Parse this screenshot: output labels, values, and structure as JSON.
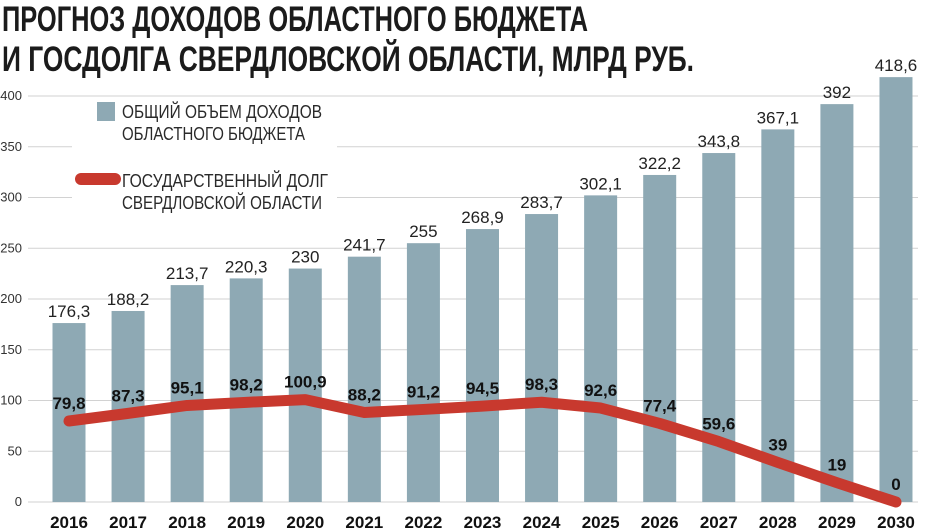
{
  "title": {
    "line1": "ПРОГНОЗ ДОХОДОВ ОБЛАСТНОГО БЮДЖЕТА",
    "line2": "И ГОСДОЛГА СВЕРДЛОВСКОЙ ОБЛАСТИ, МЛРД РУБ."
  },
  "colors": {
    "bars": "#8ea9b4",
    "line": "#c8392e",
    "grid": "#d2d2d2",
    "text": "#1b1b1b"
  },
  "chart_data": {
    "type": "bar",
    "categories": [
      "2016",
      "2017",
      "2018",
      "2019",
      "2020",
      "2021",
      "2022",
      "2023",
      "2024",
      "2025",
      "2026",
      "2027",
      "2028",
      "2029",
      "2030"
    ],
    "series": [
      {
        "type": "bar",
        "legend_lines": [
          "ОБЩИЙ ОБЪЕМ ДОХОДОВ",
          "ОБЛАСТНОГО БЮДЖЕТА"
        ],
        "values": [
          176.3,
          188.2,
          213.7,
          220.3,
          230,
          241.7,
          255,
          268.9,
          283.7,
          302.1,
          322.2,
          343.8,
          367.1,
          392,
          418.6
        ],
        "data_labels": [
          "176,3",
          "188,2",
          "213,7",
          "220,3",
          "230",
          "241,7",
          "255",
          "268,9",
          "283,7",
          "302,1",
          "322,2",
          "343,8",
          "367,1",
          "392",
          "418,6"
        ]
      },
      {
        "type": "line",
        "legend_lines": [
          "ГОСУДАРСТВЕННЫЙ ДОЛГ",
          "СВЕРДЛОВСКОЙ ОБЛАСТИ"
        ],
        "values": [
          79.8,
          87.3,
          95.1,
          98.2,
          100.9,
          88.2,
          91.2,
          94.5,
          98.3,
          92.6,
          77.4,
          59.6,
          39,
          19,
          0
        ],
        "data_labels": [
          "79,8",
          "87,3",
          "95,1",
          "98,2",
          "100,9",
          "88,2",
          "91,2",
          "94,5",
          "98,3",
          "92,6",
          "77,4",
          "59,6",
          "39",
          "19",
          "0"
        ]
      }
    ],
    "yticks": [
      0,
      50,
      100,
      150,
      200,
      250,
      300,
      350,
      400
    ],
    "grid": true,
    "legend_position": "top-left"
  }
}
